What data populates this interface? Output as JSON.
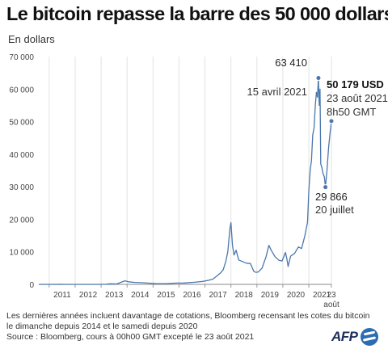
{
  "header": {
    "title": "Le bitcoin repasse la barre des 50 000 dollars",
    "unit": "En dollars"
  },
  "chart_data": {
    "type": "line",
    "title": "Le bitcoin repasse la barre des 50 000 dollars",
    "ylabel": "En dollars",
    "xlabel": "",
    "ylim": [
      0,
      70000
    ],
    "xlim": [
      2010.6,
      2021.87
    ],
    "y_ticks": [
      0,
      10000,
      20000,
      30000,
      40000,
      50000,
      60000,
      70000
    ],
    "y_tick_labels": [
      "0",
      "10 000",
      "20 000",
      "30 000",
      "40 000",
      "50 000",
      "60 000",
      "70 000"
    ],
    "x_tick_labels": [
      "2011",
      "2012",
      "2013",
      "2014",
      "2015",
      "2016",
      "2017",
      "2018",
      "2019",
      "2020",
      "2021"
    ],
    "x_last_tick_label": [
      "23",
      "août"
    ],
    "grid": "vertical",
    "line_color": "#4a77ad",
    "series": [
      {
        "x": [
          2010.6,
          2011.0,
          2011.45,
          2011.6,
          2012.0,
          2012.5,
          2012.9,
          2013.2,
          2013.35,
          2013.6,
          2013.85,
          2013.92,
          2014.05,
          2014.3,
          2014.6,
          2014.9,
          2015.1,
          2015.5,
          2015.9,
          2016.2,
          2016.6,
          2016.9,
          2017.1,
          2017.3,
          2017.45,
          2017.6,
          2017.7,
          2017.8,
          2017.88,
          2017.96,
          2018.0,
          2018.06,
          2018.12,
          2018.2,
          2018.3,
          2018.45,
          2018.6,
          2018.75,
          2018.88,
          2018.96,
          2019.05,
          2019.2,
          2019.35,
          2019.46,
          2019.55,
          2019.7,
          2019.85,
          2019.97,
          2020.1,
          2020.15,
          2020.2,
          2020.3,
          2020.45,
          2020.6,
          2020.72,
          2020.85,
          2020.95,
          2021.0,
          2021.05,
          2021.1,
          2021.15,
          2021.2,
          2021.25,
          2021.29,
          2021.33,
          2021.37,
          2021.4,
          2021.43,
          2021.46,
          2021.5,
          2021.55,
          2021.6,
          2021.64,
          2021.7,
          2021.76,
          2021.81,
          2021.87
        ],
        "y": [
          0,
          1,
          25,
          5,
          5,
          8,
          12,
          40,
          180,
          130,
          900,
          1100,
          800,
          600,
          500,
          350,
          250,
          230,
          400,
          420,
          650,
          900,
          1200,
          1600,
          2500,
          3500,
          4500,
          7000,
          10000,
          17000,
          19000,
          12000,
          9000,
          10500,
          7500,
          7000,
          6500,
          6400,
          4000,
          3700,
          3800,
          5000,
          8500,
          12000,
          10500,
          8500,
          7400,
          7200,
          9800,
          8000,
          5500,
          8700,
          9500,
          11500,
          11000,
          15000,
          19000,
          29000,
          35000,
          38000,
          46000,
          48000,
          55000,
          59000,
          57500,
          63410,
          55000,
          60000,
          37000,
          36000,
          34000,
          33000,
          29866,
          35000,
          42000,
          46000,
          50179
        ]
      }
    ],
    "annotations": [
      {
        "value": "63 410",
        "date": "15 avril 2021"
      },
      {
        "value": "50 179 USD",
        "date": "23 août 2021",
        "time": "8h50 GMT"
      },
      {
        "value": "29 866",
        "date": "20 juillet"
      }
    ]
  },
  "notes": [
    "Les dernières années incluent davantage de cotations, Bloomberg recensant les cotes du bitcoin",
    "le dimanche depuis 2014 et le samedi depuis 2020",
    "Source : Bloomberg, cours à 00h00 GMT excepté le 23 août 2021"
  ],
  "logo": {
    "text": "AFP"
  }
}
